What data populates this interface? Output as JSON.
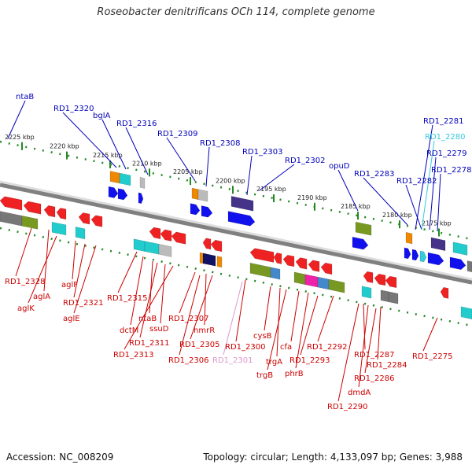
{
  "title": "Roseobacter denitrificans OCh 114, complete genome",
  "footer": {
    "accession": "Accession: NC_008209",
    "summary": "Topology: circular; Length: 4,133,097 bp; Genes: 3,988"
  },
  "colors": {
    "backbone": "#808080",
    "forward_label": "#0000bb",
    "reverse_label": "#cc0000",
    "highlight_label": "#33ccdd",
    "pseudo_label": "#dd99cc",
    "tick": "#228822"
  },
  "scale": [
    "2225 kbp",
    "2220 kbp",
    "2215 kbp",
    "2210 kbp",
    "2205 kbp",
    "2200 kbp",
    "2195 kbp",
    "2190 kbp",
    "2185 kbp",
    "2180 kbp",
    "2175 kbp"
  ],
  "forward_labels": [
    "ntaB",
    "RD1_2320",
    "bglA",
    "RD1_2316",
    "RD1_2309",
    "RD1_2308",
    "RD1_2303",
    "RD1_2302",
    "opuD",
    "RD1_2283",
    "RD1_2282",
    "RD1_2281",
    "RD1_2280",
    "RD1_2279",
    "RD1_2278"
  ],
  "reverse_labels": [
    "RD1_2328",
    "aglA",
    "aglK",
    "aglF",
    "RD1_2321",
    "aglE",
    "RD1_2315",
    "dctM",
    "ntaB",
    "RD1_2311",
    "ssuD",
    "RD1_2313",
    "RD1_2307",
    "hmrR",
    "RD1_2305",
    "RD1_2306",
    "RD1_2300",
    "RD1_2301",
    "cysB",
    "trgA",
    "trgB",
    "cfa",
    "phrB",
    "RD1_2293",
    "RD1_2292",
    "RD1_2287",
    "RD1_2284",
    "RD1_2286",
    "dmdA",
    "RD1_2290",
    "RD1_2275"
  ]
}
